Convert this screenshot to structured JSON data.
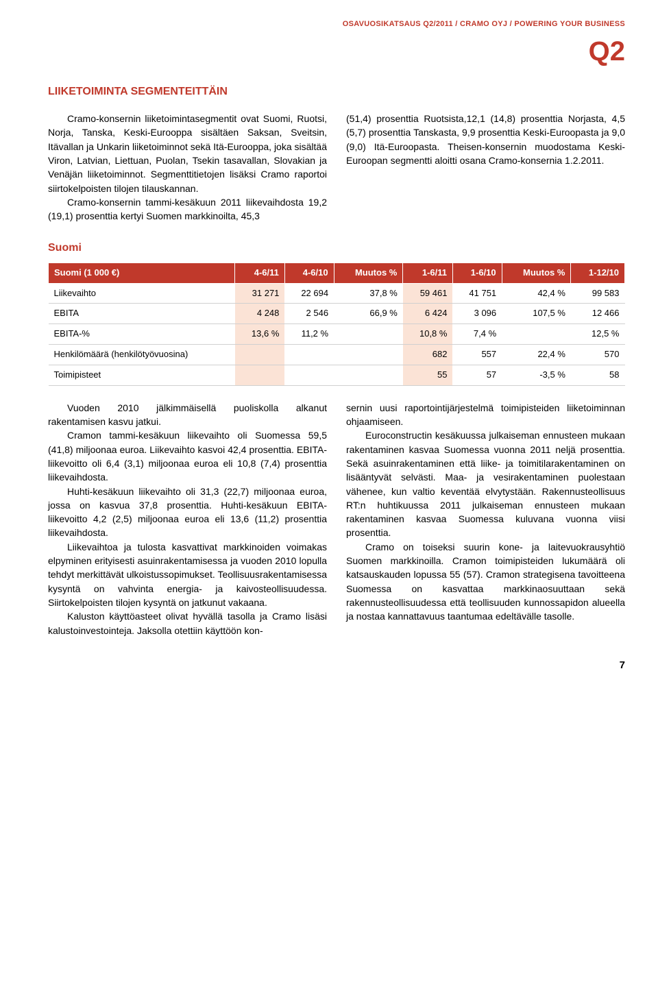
{
  "header": {
    "line": "OSAVUOSIKATSAUS Q2/2011 / CRAMO OYJ / POWERING YOUR BUSINESS",
    "quarter": "Q2"
  },
  "section_title": "LIIKETOIMINTA SEGMENTEITTÄIN",
  "intro": {
    "left": {
      "p1": "Cramo-konsernin liiketoimintasegmentit ovat Suomi, Ruotsi, Norja, Tanska, Keski-Eurooppa sisältäen Saksan, Sveitsin, Itävallan ja Unkarin liiketoiminnot sekä Itä-Eurooppa, joka sisältää Viron, Latvian, Liettuan, Puolan, Tsekin tasavallan, Slovakian ja Venäjän liiketoiminnot. Segmenttitietojen lisäksi Cramo raportoi siirtokelpoisten tilojen tilauskannan.",
      "p2": "Cramo-konsernin tammi-kesäkuun 2011 liikevaihdosta 19,2 (19,1) prosenttia kertyi Suomen markkinoilta, 45,3"
    },
    "right": {
      "p1": "(51,4) prosenttia Ruotsista,12,1 (14,8) prosenttia Norjasta, 4,5 (5,7) prosenttia Tanskasta, 9,9 prosenttia Keski-Euroopasta ja 9,0 (9,0) Itä-Euroopasta. Theisen-konsernin muodostama Keski-Euroopan segmentti aloitti osana Cramo-konsernia 1.2.2011."
    }
  },
  "sub_heading": "Suomi",
  "table": {
    "headers": [
      "Suomi (1 000 €)",
      "4-6/11",
      "4-6/10",
      "Muutos %",
      "1-6/11",
      "1-6/10",
      "Muutos %",
      "1-12/10"
    ],
    "rows": [
      {
        "label": "Liikevaihto",
        "c1": "31 271",
        "c2": "22 694",
        "c3": "37,8 %",
        "c4": "59 461",
        "c5": "41 751",
        "c6": "42,4 %",
        "c7": "99 583"
      },
      {
        "label": "EBITA",
        "c1": "4 248",
        "c2": "2 546",
        "c3": "66,9 %",
        "c4": "6 424",
        "c5": "3 096",
        "c6": "107,5 %",
        "c7": "12 466"
      },
      {
        "label": "EBITA-%",
        "c1": "13,6 %",
        "c2": "11,2 %",
        "c3": "",
        "c4": "10,8 %",
        "c5": "7,4 %",
        "c6": "",
        "c7": "12,5 %"
      },
      {
        "label": "Henkilömäärä (henkilötyövuosina)",
        "c1": "",
        "c2": "",
        "c3": "",
        "c4": "682",
        "c5": "557",
        "c6": "22,4 %",
        "c7": "570"
      },
      {
        "label": "Toimipisteet",
        "c1": "",
        "c2": "",
        "c3": "",
        "c4": "55",
        "c5": "57",
        "c6": "-3,5 %",
        "c7": "58"
      }
    ],
    "highlight_cols": [
      1,
      4
    ],
    "header_bg": "#c0392b",
    "highlight_bg": "#fbe3d6"
  },
  "body": {
    "left": {
      "p1": "Vuoden 2010 jälkimmäisellä puoliskolla alkanut rakentamisen kasvu jatkui.",
      "p2": "Cramon tammi-kesäkuun liikevaihto oli Suomessa 59,5 (41,8) miljoonaa euroa. Liikevaihto kasvoi 42,4 prosenttia. EBITA-liikevoitto oli 6,4 (3,1) miljoonaa euroa eli 10,8 (7,4) prosenttia liikevaihdosta.",
      "p3": "Huhti-kesäkuun liikevaihto oli 31,3 (22,7) miljoonaa euroa, jossa on kasvua 37,8 prosenttia. Huhti-kesäkuun EBITA-liikevoitto 4,2 (2,5) miljoonaa euroa eli 13,6 (11,2) prosenttia liikevaihdosta.",
      "p4": "Liikevaihtoa ja tulosta kasvattivat markkinoiden voimakas elpyminen erityisesti asuinrakentamisessa ja vuoden 2010 lopulla tehdyt merkittävät ulkoistussopimukset. Teollisuusrakentamisessa kysyntä on vahvinta energia- ja kaivosteollisuudessa. Siirtokelpoisten tilojen kysyntä on jatkunut vakaana.",
      "p5": "Kaluston käyttöasteet olivat hyvällä tasolla ja Cramo lisäsi kalustoinvestointeja. Jaksolla otettiin käyttöön kon-"
    },
    "right": {
      "p1": "sernin uusi raportointijärjestelmä toimipisteiden liiketoiminnan ohjaamiseen.",
      "p2": "Euroconstructin kesäkuussa julkaiseman ennusteen mukaan rakentaminen kasvaa Suomessa vuonna 2011 neljä prosenttia. Sekä asuinrakentaminen että liike- ja toimitilarakentaminen on lisääntyvät selvästi. Maa- ja vesirakentaminen puolestaan vähenee, kun valtio keventää elvytystään. Rakennusteollisuus RT:n huhtikuussa 2011 julkaiseman ennusteen mukaan rakentaminen kasvaa Suomessa kuluvana vuonna viisi prosenttia.",
      "p3": "Cramo on toiseksi suurin kone- ja laitevuokrausyhtiö Suomen markkinoilla. Cramon toimipisteiden lukumäärä oli katsauskauden lopussa 55 (57). Cramon strategisena tavoitteena Suomessa on kasvattaa markkinaosuuttaan sekä rakennusteollisuudessa että teollisuuden kunnossapidon alueella ja nostaa kannattavuus taantumaa edeltävälle tasolle."
    }
  },
  "page_num": "7"
}
